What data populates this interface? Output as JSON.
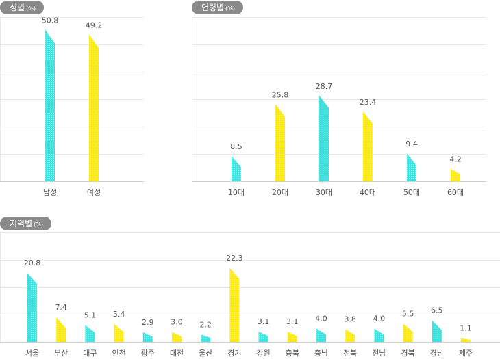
{
  "chart_data": [
    {
      "type": "bar",
      "title": "성별",
      "unit": "(%)",
      "categories": [
        "남성",
        "여성"
      ],
      "values": [
        50.8,
        49.2
      ],
      "colors": [
        "#3fe2de",
        "#fdea12"
      ],
      "ylim": [
        0,
        55
      ],
      "grid": true
    },
    {
      "type": "bar",
      "title": "연령별",
      "unit": "(%)",
      "categories": [
        "10대",
        "20대",
        "30대",
        "40대",
        "50대",
        "60대"
      ],
      "values": [
        8.5,
        25.8,
        28.7,
        23.4,
        9.4,
        4.2
      ],
      "colors": [
        "#3fe2de",
        "#fdea12",
        "#3fe2de",
        "#fdea12",
        "#3fe2de",
        "#fdea12"
      ],
      "ylim": [
        0,
        55
      ],
      "grid": true
    },
    {
      "type": "bar",
      "title": "지역별",
      "unit": "(%)",
      "categories": [
        "서울",
        "부산",
        "대구",
        "인천",
        "광주",
        "대전",
        "울산",
        "경기",
        "강원",
        "충북",
        "충남",
        "전북",
        "전남",
        "경북",
        "경남",
        "제주"
      ],
      "values": [
        20.8,
        7.4,
        5.1,
        5.4,
        2.9,
        3.0,
        2.2,
        22.3,
        3.1,
        3.1,
        4.0,
        3.8,
        4.0,
        5.5,
        6.5,
        1.1
      ],
      "colors": [
        "#3fe2de",
        "#fdea12",
        "#3fe2de",
        "#fdea12",
        "#3fe2de",
        "#fdea12",
        "#3fe2de",
        "#fdea12",
        "#3fe2de",
        "#fdea12",
        "#3fe2de",
        "#fdea12",
        "#3fe2de",
        "#fdea12",
        "#3fe2de",
        "#fdea12"
      ],
      "ylim": [
        0,
        33
      ],
      "grid": true
    }
  ]
}
